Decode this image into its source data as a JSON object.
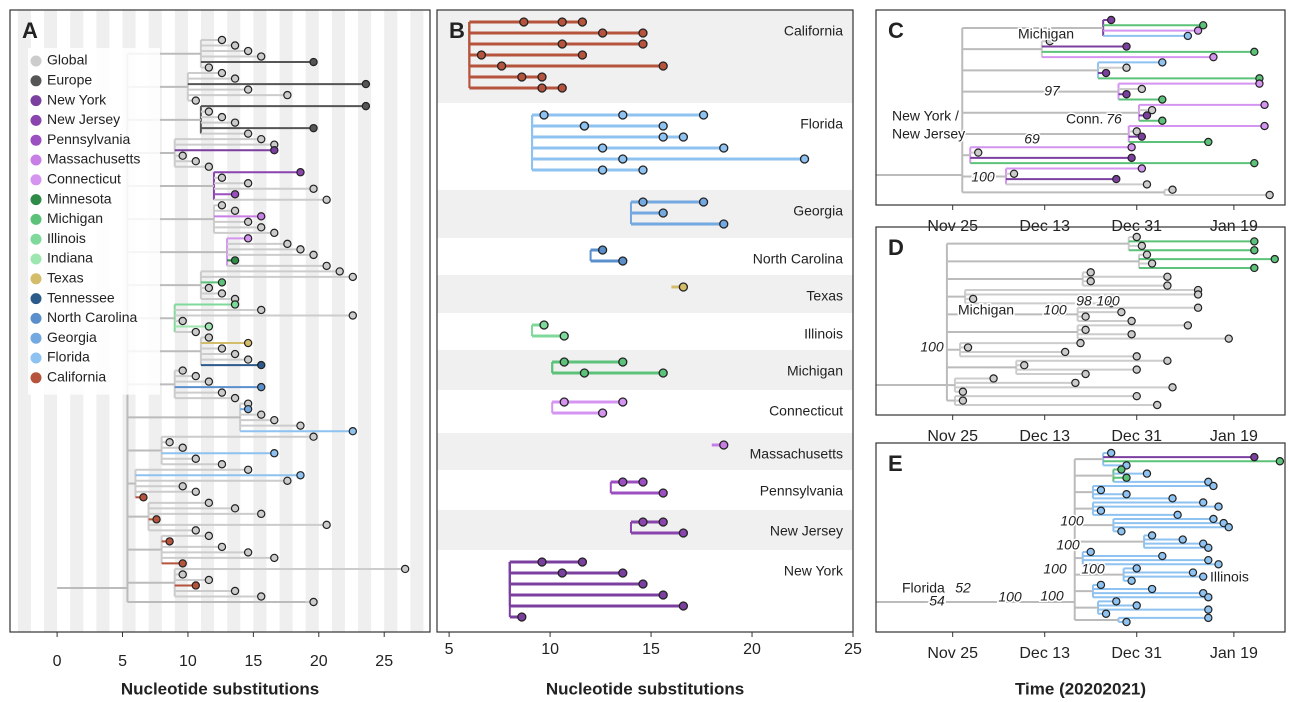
{
  "chart_data": [
    {
      "type": "tree",
      "panel": "A",
      "xlabel": "Nucleotide substitutions",
      "xlim": [
        -3.6,
        28.5
      ],
      "xticks": [
        0,
        5,
        10,
        15,
        20,
        25
      ],
      "stripes": true,
      "legend": "upper left",
      "series": [
        {
          "name": "Global",
          "color": "#cccccc",
          "values": [
            12.6,
            13.6,
            14.6,
            15.6,
            11.6,
            12.6,
            13.6,
            14.6,
            17.6,
            10.6,
            11.6,
            12.6,
            13.6,
            14.6,
            15.6,
            16.6,
            9.6,
            10.6,
            11.6,
            12.6,
            14.6,
            19.6,
            20.6,
            12.6,
            13.6,
            14.6,
            15.6,
            16.6,
            17.6,
            18.6,
            19.6,
            20.6,
            21.6,
            22.6,
            11.6,
            12.6,
            13.6,
            15.6,
            22.6,
            9.6,
            10.6,
            11.6,
            12.6,
            13.6,
            14.6,
            9.6,
            10.6,
            11.6,
            12.6,
            13.6,
            14.6,
            15.6,
            16.6,
            18.6,
            19.6,
            8.6,
            9.6,
            10.6,
            12.6,
            14.6,
            17.6,
            9.6,
            10.6,
            11.6,
            13.6,
            15.6,
            20.6,
            10.6,
            11.6,
            12.6,
            14.6,
            16.6,
            26.6,
            9.6,
            11.6,
            13.6,
            15.6,
            19.6
          ]
        },
        {
          "name": "Europe",
          "color": "#555555",
          "values": [
            19.6,
            23.6,
            23.6,
            19.6
          ]
        },
        {
          "name": "New York",
          "color": "#7b3fa0",
          "values": [
            16.6
          ]
        },
        {
          "name": "New Jersey",
          "color": "#8a44ad",
          "values": [
            18.6
          ]
        },
        {
          "name": "Pennsylvania",
          "color": "#9b4fc0",
          "values": [
            13.6
          ]
        },
        {
          "name": "Massachusetts",
          "color": "#c77fe6",
          "values": [
            15.6
          ]
        },
        {
          "name": "Connecticut",
          "color": "#d494f0",
          "values": [
            14.6
          ]
        },
        {
          "name": "Minnesota",
          "color": "#2e8b47",
          "values": [
            13.6
          ]
        },
        {
          "name": "Michigan",
          "color": "#5cc27a",
          "values": [
            12.6
          ]
        },
        {
          "name": "Illinois",
          "color": "#7fd99a",
          "values": [
            13.6
          ]
        },
        {
          "name": "Indiana",
          "color": "#9ee6b0",
          "values": [
            11.6
          ]
        },
        {
          "name": "Texas",
          "color": "#d4bd6a",
          "values": [
            14.6
          ]
        },
        {
          "name": "Tennessee",
          "color": "#2c5a8a",
          "values": [
            15.6
          ]
        },
        {
          "name": "North Carolina",
          "color": "#5b8fcc",
          "values": [
            15.6
          ]
        },
        {
          "name": "Georgia",
          "color": "#74a8e0",
          "values": [
            14.6
          ]
        },
        {
          "name": "Florida",
          "color": "#8ec2f0",
          "values": [
            22.6,
            16.6,
            18.6
          ]
        },
        {
          "name": "California",
          "color": "#b5533c",
          "values": [
            6.6,
            7.6,
            8.6,
            9.6,
            10.6
          ]
        }
      ]
    },
    {
      "type": "dot-rows",
      "panel": "B",
      "xlabel": "Nucleotide substitutions",
      "xlim": [
        4.4,
        25
      ],
      "xticks": [
        5,
        10,
        15,
        20,
        25
      ],
      "band_shading": true,
      "series": [
        {
          "name": "California",
          "color": "#b5533c",
          "values": [
            8.7,
            14.6,
            10.6,
            11.6,
            15.6,
            9.6,
            10.6,
            11.6,
            12.6,
            14.6,
            6.6,
            7.6,
            8.6,
            9.6,
            10.6
          ]
        },
        {
          "name": "Florida",
          "color": "#8ec2f0",
          "values": [
            9.7,
            11.7,
            15.6,
            12.6,
            13.6,
            14.6,
            17.6,
            15.6,
            16.6,
            18.6,
            22.6,
            12.6,
            13.6,
            11.7
          ]
        },
        {
          "name": "Georgia",
          "color": "#74a8e0",
          "values": [
            14.6,
            15.6,
            18.6,
            17.6
          ]
        },
        {
          "name": "North Carolina",
          "color": "#5b8fcc",
          "values": [
            12.6,
            13.6
          ]
        },
        {
          "name": "Texas",
          "color": "#d4bd6a",
          "values": [
            16.6
          ]
        },
        {
          "name": "Illinois",
          "color": "#7fd99a",
          "values": [
            9.7,
            10.7
          ]
        },
        {
          "name": "Michigan",
          "color": "#5cc27a",
          "values": [
            10.7,
            11.7,
            13.6,
            15.6
          ]
        },
        {
          "name": "Connecticut",
          "color": "#d494f0",
          "values": [
            10.7,
            12.6,
            13.6
          ]
        },
        {
          "name": "Massachusetts",
          "color": "#c77fe6",
          "values": [
            18.6
          ]
        },
        {
          "name": "Pennsylvania",
          "color": "#9b4fc0",
          "values": [
            13.6,
            15.6,
            14.6
          ]
        },
        {
          "name": "New Jersey",
          "color": "#8a44ad",
          "values": [
            14.6,
            16.6,
            15.6
          ]
        },
        {
          "name": "New York",
          "color": "#7b3fa0",
          "values": [
            11.6,
            13.6,
            14.6,
            15.6,
            16.6,
            8.6,
            9.6,
            10.6
          ]
        }
      ]
    },
    {
      "type": "tree-time",
      "panel": "C",
      "xlim": [
        "Nov 10",
        "Jan 29"
      ],
      "xticks": [
        "Nov 25",
        "Dec 13",
        "Dec 31",
        "Jan 19"
      ],
      "annotations": [
        "Michigan",
        "97",
        "New York /",
        "New Jersey",
        "69",
        "Conn.",
        "76",
        "100"
      ],
      "series": [
        {
          "color": "#7b3fa0",
          "values": [
            "Dec 26",
            "Dec 29",
            "Dec 25",
            "Dec 29",
            "Jan 2",
            "Jan 1",
            "Dec 30",
            "Dec 27"
          ]
        },
        {
          "color": "#5cc27a",
          "values": [
            "Jan 13",
            "Jan 23",
            "Jan 24",
            "Jan 5",
            "Jan 5",
            "Jan 14",
            "Jan 23"
          ]
        },
        {
          "color": "#d494f0",
          "values": [
            "Jan 12",
            "Jan 15",
            "Jan 24",
            "Jan 25",
            "Jan 25",
            "Dec 30",
            "Jan 1"
          ]
        },
        {
          "color": "#8ec2f0",
          "values": [
            "Jan 10",
            "Jan 5"
          ]
        },
        {
          "color": "#cccccc",
          "values": [
            "Dec 14",
            "Dec 29",
            "Jan 1",
            "Jan 3",
            "Dec 31",
            "Nov 30",
            "Dec 7",
            "Jan 2",
            "Jan 7",
            "Jan 26"
          ]
        }
      ]
    },
    {
      "type": "tree-time",
      "panel": "D",
      "xlim": [
        "Nov 10",
        "Jan 29"
      ],
      "xticks": [
        "Nov 25",
        "Dec 13",
        "Dec 31",
        "Jan 19"
      ],
      "annotations": [
        "Michigan",
        "100",
        "98",
        "100",
        "100"
      ],
      "series": [
        {
          "color": "#cccccc",
          "values": [
            "Dec 31",
            "Jan 1",
            "Jan 2",
            "Jan 3",
            "Dec 22",
            "Jan 6",
            "Dec 22",
            "Jan 6",
            "Jan 12",
            "Jan 12",
            "Nov 29",
            "Dec 26",
            "Jan 12",
            "Dec 28",
            "Dec 21",
            "Dec 30",
            "Jan 10",
            "Dec 21",
            "Dec 30",
            "Jan 18",
            "Dec 20",
            "Nov 28",
            "Dec 17",
            "Dec 31",
            "Jan 6",
            "Dec 9",
            "Dec 31",
            "Dec 21",
            "Dec 3",
            "Dec 19",
            "Jan 7",
            "Nov 27",
            "Dec 31",
            "Nov 27",
            "Jan 4"
          ]
        },
        {
          "color": "#5cc27a",
          "values": [
            "Jan 23",
            "Jan 23",
            "Jan 27",
            "Jan 23"
          ]
        }
      ]
    },
    {
      "type": "tree-time",
      "panel": "E",
      "xlabel": "Time (20202021)",
      "xlim": [
        "Nov 10",
        "Jan 29"
      ],
      "xticks": [
        "Nov 25",
        "Dec 13",
        "Dec 31",
        "Jan 19"
      ],
      "annotations": [
        "Florida",
        "52",
        "54",
        "100",
        "100",
        "100",
        "100",
        "100",
        "100",
        "Illinois"
      ],
      "series": [
        {
          "color": "#8ec2f0",
          "values": [
            "Dec 26",
            "Dec 29",
            "Jan 2",
            "Jan 14",
            "Jan 15",
            "Dec 24",
            "Dec 29",
            "Jan 7",
            "Jan 13",
            "Jan 16",
            "Dec 24",
            "Jan 8",
            "Jan 15",
            "Jan 17",
            "Jan 18",
            "Dec 28",
            "Jan 3",
            "Jan 9",
            "Jan 13",
            "Jan 14",
            "Dec 22",
            "Jan 5",
            "Jan 14",
            "Jan 16",
            "Dec 31",
            "Jan 11",
            "Jan 13",
            "Dec 30",
            "Dec 24",
            "Jan 3",
            "Jan 13",
            "Jan 14",
            "Dec 27",
            "Dec 31",
            "Jan 14",
            "Dec 25",
            "Jan 14",
            "Dec 29"
          ]
        },
        {
          "color": "#7b3fa0",
          "values": [
            "Jan 23"
          ]
        },
        {
          "color": "#5cc27a",
          "values": [
            "Jan 28",
            "Dec 28",
            "Dec 29"
          ]
        }
      ]
    }
  ]
}
